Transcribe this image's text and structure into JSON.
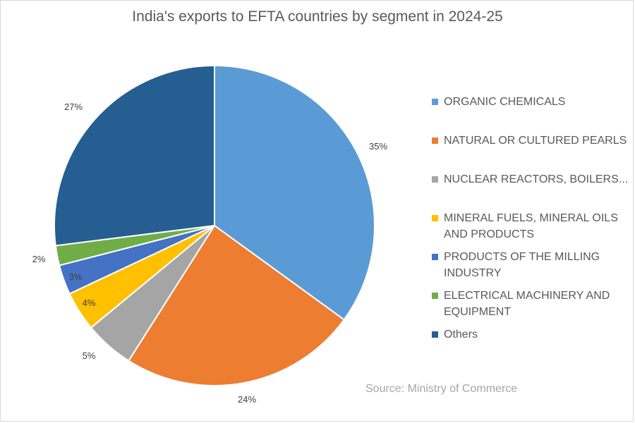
{
  "chart_data": {
    "type": "pie",
    "title": "India's exports to EFTA countries by segment in 2024-25",
    "slices": [
      {
        "label": "ORGANIC CHEMICALS",
        "value": 35,
        "display": "35%",
        "color": "#5b9bd5"
      },
      {
        "label": "NATURAL OR CULTURED PEARLS",
        "value": 24,
        "display": "24%",
        "color": "#ed7d31"
      },
      {
        "label": "NUCLEAR REACTORS, BOILERS...",
        "value": 5,
        "display": "5%",
        "color": "#a5a5a5"
      },
      {
        "label": "MINERAL FUELS, MINERAL OILS AND PRODUCTS",
        "value": 4,
        "display": "4%",
        "color": "#ffc000"
      },
      {
        "label": "PRODUCTS OF THE MILLING INDUSTRY",
        "value": 3,
        "display": "3%",
        "color": "#4472c4"
      },
      {
        "label": "ELECTRICAL MACHINERY AND EQUIPMENT",
        "value": 2,
        "display": "2%",
        "color": "#70ad47"
      },
      {
        "label": "Others",
        "value": 27,
        "display": "27%",
        "color": "#255e91"
      }
    ],
    "legend_position": "right"
  },
  "source": "Source:  Ministry of Commerce"
}
